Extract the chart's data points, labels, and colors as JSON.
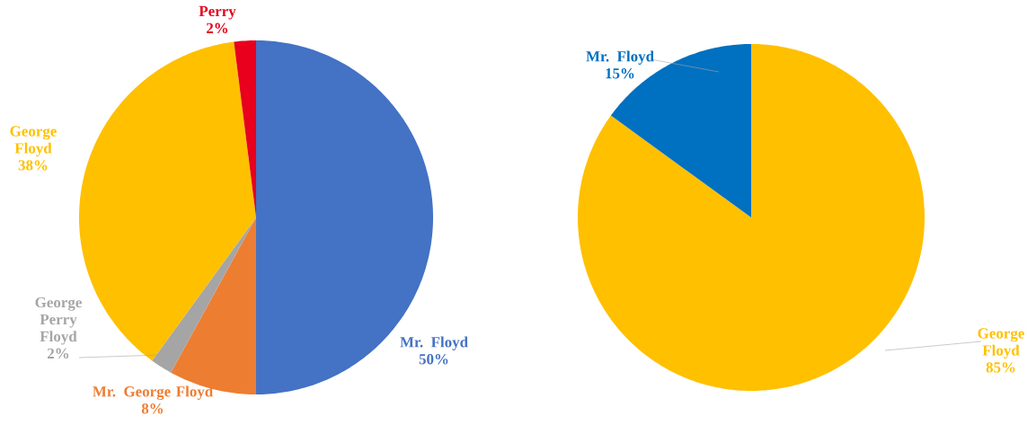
{
  "chart_data": [
    {
      "type": "pie",
      "categories": [
        "Mr. Floyd",
        "Mr. George Floyd",
        "George Perry Floyd",
        "George Floyd",
        "Perry"
      ],
      "values": [
        50,
        8,
        2,
        38,
        2
      ],
      "value_labels": [
        "50%",
        "8%",
        "2%",
        "38%",
        "2%"
      ],
      "colors": [
        "#4472c4",
        "#ed7d31",
        "#a5a5a5",
        "#ffc000",
        "#e8001c"
      ]
    },
    {
      "type": "pie",
      "categories": [
        "George Floyd",
        "Mr. Floyd"
      ],
      "values": [
        85,
        15
      ],
      "value_labels": [
        "85%",
        "15%"
      ],
      "colors": [
        "#ffc000",
        "#0070c0"
      ]
    }
  ]
}
